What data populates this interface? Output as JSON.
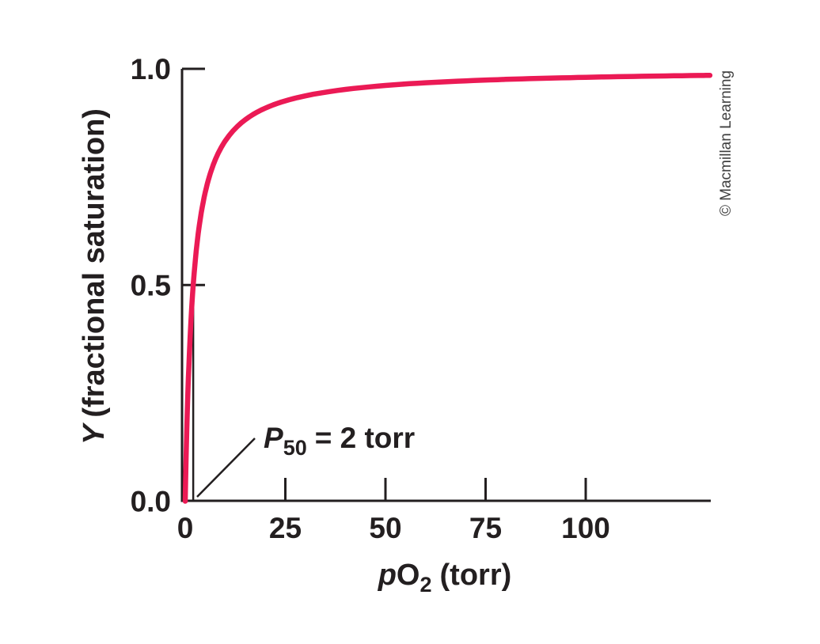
{
  "figure": {
    "background_color": "#ffffff",
    "credit": "© Macmillan Learning",
    "credit_color": "#3f3f3f"
  },
  "chart_data": {
    "type": "line",
    "description": "Hyperbolic oxygen-binding curve: fractional saturation versus partial pressure of oxygen, half-saturated at 2 torr",
    "title": "",
    "xlabel": "pO2 (torr)",
    "ylabel": "Y (fractional saturation)",
    "xlabel_parts": {
      "p_italic": "p",
      "O": "O",
      "subscript": "2",
      "units": "(torr)"
    },
    "ylabel_parts": {
      "Y_italic": "Y",
      "rest": "(fractional saturation)"
    },
    "xlim": [
      0,
      131
    ],
    "ylim": [
      0,
      1.0
    ],
    "x_ticks": [
      "0",
      "25",
      "50",
      "75",
      "100"
    ],
    "x_tick_values": [
      0,
      25,
      50,
      75,
      100
    ],
    "y_ticks": [
      "0.0",
      "0.5",
      "1.0"
    ],
    "y_tick_values": [
      0,
      0.5,
      1.0
    ],
    "grid": false,
    "legend": false,
    "axis_color": "#231f20",
    "series": [
      {
        "name": "hyperbolic binding curve",
        "color": "#eb1a55",
        "p50_torr": 2,
        "x": [
          0,
          1,
          2,
          3,
          5,
          10,
          20,
          30,
          50,
          75,
          100,
          120,
          131
        ],
        "y": [
          0,
          0.33,
          0.5,
          0.6,
          0.71,
          0.83,
          0.91,
          0.94,
          0.96,
          0.97,
          0.98,
          0.984,
          0.985
        ]
      }
    ],
    "annotation": {
      "label_P_italic": "P",
      "label_subscript": "50",
      "label_rest": "= 2 torr",
      "marker_x_torr": 2,
      "marker_y_saturation": 0.5
    }
  }
}
